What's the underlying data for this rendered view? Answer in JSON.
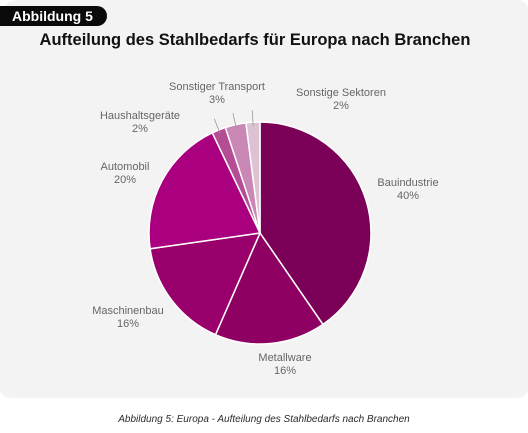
{
  "figure": {
    "badge": "Abbildung 5",
    "caption": "Abbildung 5: Europa - Aufteilung des Stahlbedarfs nach Branchen"
  },
  "chart_data": {
    "type": "pie",
    "title": "Aufteilung des Stahlbedarfs für Europa nach Branchen",
    "unit": "%",
    "slices": [
      {
        "label": "Bauindustrie",
        "value": 40,
        "value_text": "40%",
        "color": "#7b0058"
      },
      {
        "label": "Metallware",
        "value": 16,
        "value_text": "16%",
        "color": "#8f0063"
      },
      {
        "label": "Maschinenbau",
        "value": 16,
        "value_text": "16%",
        "color": "#9a006c"
      },
      {
        "label": "Automobil",
        "value": 20,
        "value_text": "20%",
        "color": "#aa0080"
      },
      {
        "label": "Haushaltsgeräte",
        "value": 2,
        "value_text": "2%",
        "color": "#b54d95"
      },
      {
        "label": "Sonstiger Transport",
        "value": 3,
        "value_text": "3%",
        "color": "#c987b5"
      },
      {
        "label": "Sonstige Sektoren",
        "value": 2,
        "value_text": "2%",
        "color": "#dcc2d2"
      }
    ]
  }
}
